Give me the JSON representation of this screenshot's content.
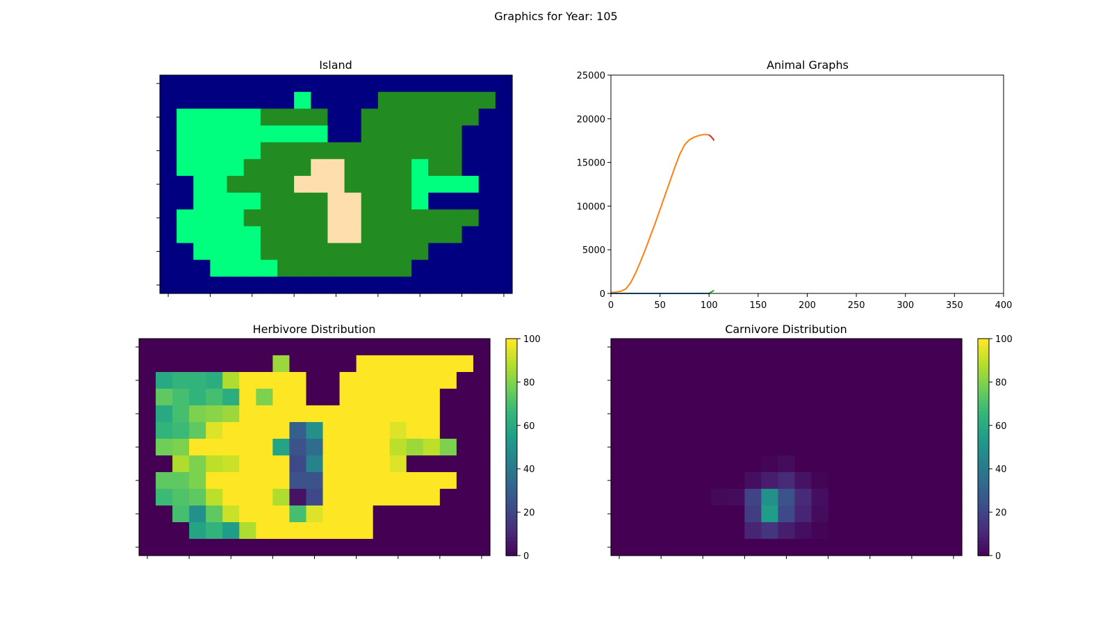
{
  "figure": {
    "suptitle": "Graphics for Year: 105"
  },
  "chart_data": [
    {
      "type": "heatmap",
      "title": "Island",
      "legend": {
        "water": "#000080",
        "lowland": "#00ff7f",
        "highland": "#228b22",
        "desert": "#ffdead"
      },
      "rows": [
        "WWWWWWWWWWWWWWWWWWWWW",
        "WWWWWWWWLWWWWHHHHHHHW",
        "WLLLLLHHHHWWHHHHHHHWW",
        "WLLLLLLLLLWWHHHHHHWWW",
        "WLLLLLHHHHHHHHHHHHWWW",
        "WLLLLHHHHDDHHHHLHHWWW",
        "WWLLHHHHDDDHHHHLLLLWW",
        "WWLLLLHHHHDDHHHLWWWWW",
        "WLLLLHHHHHDDHHHHHHHWW",
        "WLLLLLHHHHDDHHHHHHWWW",
        "WWLLLLHHHHHHHHHHWWWWW",
        "WWWLLLLHHHHHHHHWWWWWW",
        "WWWWWWWWWWWWWWWWWWWWW"
      ]
    },
    {
      "type": "line",
      "title": "Animal Graphs",
      "xlim": [
        0,
        400
      ],
      "ylim": [
        0,
        25000
      ],
      "xticks": [
        0,
        50,
        100,
        150,
        200,
        250,
        300,
        350,
        400
      ],
      "yticks": [
        0,
        5000,
        10000,
        15000,
        20000,
        25000
      ],
      "series": [
        {
          "color": "#ff7f0e",
          "x": [
            0,
            5,
            10,
            15,
            20,
            25,
            30,
            35,
            40,
            45,
            50,
            55,
            60,
            65,
            70,
            75,
            80,
            85,
            90,
            95,
            100
          ],
          "y": [
            100,
            150,
            250,
            500,
            1200,
            2300,
            3600,
            5000,
            6500,
            8000,
            9600,
            11200,
            12800,
            14400,
            15900,
            17000,
            17600,
            17900,
            18100,
            18200,
            18150
          ]
        },
        {
          "color": "#1f77b4",
          "x": [
            0,
            20,
            40,
            60,
            80,
            100
          ],
          "y": [
            0,
            0,
            0,
            0,
            0,
            0
          ]
        },
        {
          "color": "#2ca02c",
          "x": [
            100,
            102,
            105
          ],
          "y": [
            0,
            150,
            350
          ]
        },
        {
          "color": "#d62728",
          "x": [
            100,
            102,
            104,
            105
          ],
          "y": [
            18150,
            17950,
            17700,
            17500
          ]
        }
      ]
    },
    {
      "type": "heatmap",
      "title": "Herbivore Distribution",
      "colorscale": "viridis",
      "vmin": 0,
      "vmax": 100,
      "colorbar_ticks": [
        0,
        20,
        40,
        60,
        80,
        100
      ],
      "values": [
        [
          0,
          0,
          0,
          0,
          0,
          0,
          0,
          0,
          0,
          0,
          0,
          0,
          0,
          0,
          0,
          0,
          0,
          0,
          0,
          0,
          0
        ],
        [
          0,
          0,
          0,
          0,
          0,
          0,
          0,
          0,
          85,
          0,
          0,
          0,
          0,
          100,
          100,
          100,
          100,
          100,
          100,
          100,
          0
        ],
        [
          0,
          60,
          65,
          65,
          62,
          88,
          100,
          100,
          100,
          100,
          0,
          0,
          100,
          100,
          100,
          100,
          100,
          100,
          100,
          0,
          0
        ],
        [
          0,
          75,
          70,
          65,
          70,
          62,
          100,
          80,
          100,
          100,
          0,
          0,
          100,
          100,
          100,
          100,
          100,
          100,
          0,
          0,
          0
        ],
        [
          0,
          60,
          70,
          80,
          82,
          85,
          100,
          100,
          100,
          100,
          100,
          100,
          100,
          100,
          100,
          100,
          100,
          100,
          0,
          0,
          0
        ],
        [
          0,
          65,
          68,
          75,
          95,
          100,
          100,
          100,
          100,
          30,
          50,
          100,
          100,
          100,
          100,
          95,
          100,
          100,
          0,
          0,
          0
        ],
        [
          0,
          78,
          80,
          100,
          100,
          100,
          100,
          100,
          58,
          25,
          35,
          100,
          100,
          100,
          100,
          90,
          85,
          90,
          80,
          0,
          0
        ],
        [
          0,
          0,
          88,
          80,
          90,
          92,
          100,
          100,
          100,
          22,
          45,
          100,
          100,
          100,
          100,
          95,
          0,
          0,
          0,
          0,
          0
        ],
        [
          0,
          75,
          75,
          80,
          100,
          100,
          100,
          100,
          100,
          25,
          25,
          100,
          100,
          100,
          100,
          100,
          100,
          100,
          100,
          0,
          0
        ],
        [
          0,
          68,
          72,
          75,
          90,
          100,
          100,
          100,
          88,
          5,
          22,
          100,
          100,
          100,
          100,
          100,
          100,
          100,
          0,
          0,
          0
        ],
        [
          0,
          0,
          70,
          50,
          75,
          92,
          100,
          100,
          100,
          70,
          95,
          100,
          100,
          100,
          0,
          0,
          0,
          0,
          0,
          0,
          0
        ],
        [
          0,
          0,
          0,
          58,
          65,
          55,
          88,
          100,
          100,
          100,
          100,
          100,
          100,
          100,
          0,
          0,
          0,
          0,
          0,
          0,
          0
        ],
        [
          0,
          0,
          0,
          0,
          0,
          0,
          0,
          0,
          0,
          0,
          0,
          0,
          0,
          0,
          0,
          0,
          0,
          0,
          0,
          0,
          0
        ]
      ]
    },
    {
      "type": "heatmap",
      "title": "Carnivore Distribution",
      "colorscale": "viridis",
      "vmin": 0,
      "vmax": 100,
      "colorbar_ticks": [
        0,
        20,
        40,
        60,
        80,
        100
      ],
      "values": [
        [
          0,
          0,
          0,
          0,
          0,
          0,
          0,
          0,
          0,
          0,
          0,
          0,
          0,
          0,
          0,
          0,
          0,
          0,
          0,
          0,
          0
        ],
        [
          0,
          0,
          0,
          0,
          0,
          0,
          0,
          0,
          0,
          0,
          0,
          0,
          0,
          0,
          0,
          0,
          0,
          0,
          0,
          0,
          0
        ],
        [
          0,
          0,
          0,
          0,
          0,
          0,
          0,
          0,
          0,
          0,
          0,
          0,
          0,
          0,
          0,
          0,
          0,
          0,
          0,
          0,
          0
        ],
        [
          0,
          0,
          0,
          0,
          0,
          0,
          0,
          0,
          0,
          0,
          0,
          0,
          0,
          0,
          0,
          0,
          0,
          0,
          0,
          0,
          0
        ],
        [
          0,
          0,
          0,
          0,
          0,
          0,
          0,
          0,
          0,
          0,
          0,
          0,
          0,
          0,
          0,
          0,
          0,
          0,
          0,
          0,
          0
        ],
        [
          0,
          0,
          0,
          0,
          0,
          0,
          0,
          0,
          0,
          0,
          0,
          0,
          0,
          0,
          0,
          0,
          0,
          0,
          0,
          0,
          0
        ],
        [
          0,
          0,
          0,
          0,
          0,
          0,
          0,
          0,
          0,
          0,
          0,
          0,
          0,
          0,
          0,
          0,
          0,
          0,
          0,
          0,
          0
        ],
        [
          0,
          0,
          0,
          0,
          0,
          0,
          0,
          0,
          0,
          1,
          3,
          0,
          0,
          0,
          0,
          0,
          0,
          0,
          0,
          0,
          0
        ],
        [
          0,
          0,
          0,
          0,
          0,
          0,
          0,
          0,
          4,
          8,
          12,
          5,
          1,
          0,
          0,
          0,
          0,
          0,
          0,
          0,
          0
        ],
        [
          0,
          0,
          0,
          0,
          0,
          0,
          2,
          3,
          20,
          50,
          25,
          12,
          4,
          0,
          0,
          0,
          0,
          0,
          0,
          0,
          0
        ],
        [
          0,
          0,
          0,
          0,
          0,
          0,
          0,
          0,
          18,
          55,
          22,
          10,
          3,
          0,
          0,
          0,
          0,
          0,
          0,
          0,
          0
        ],
        [
          0,
          0,
          0,
          0,
          0,
          0,
          0,
          0,
          10,
          15,
          8,
          4,
          1,
          0,
          0,
          0,
          0,
          0,
          0,
          0,
          0
        ],
        [
          0,
          0,
          0,
          0,
          0,
          0,
          0,
          0,
          0,
          0,
          0,
          0,
          0,
          0,
          0,
          0,
          0,
          0,
          0,
          0,
          0
        ]
      ]
    }
  ]
}
